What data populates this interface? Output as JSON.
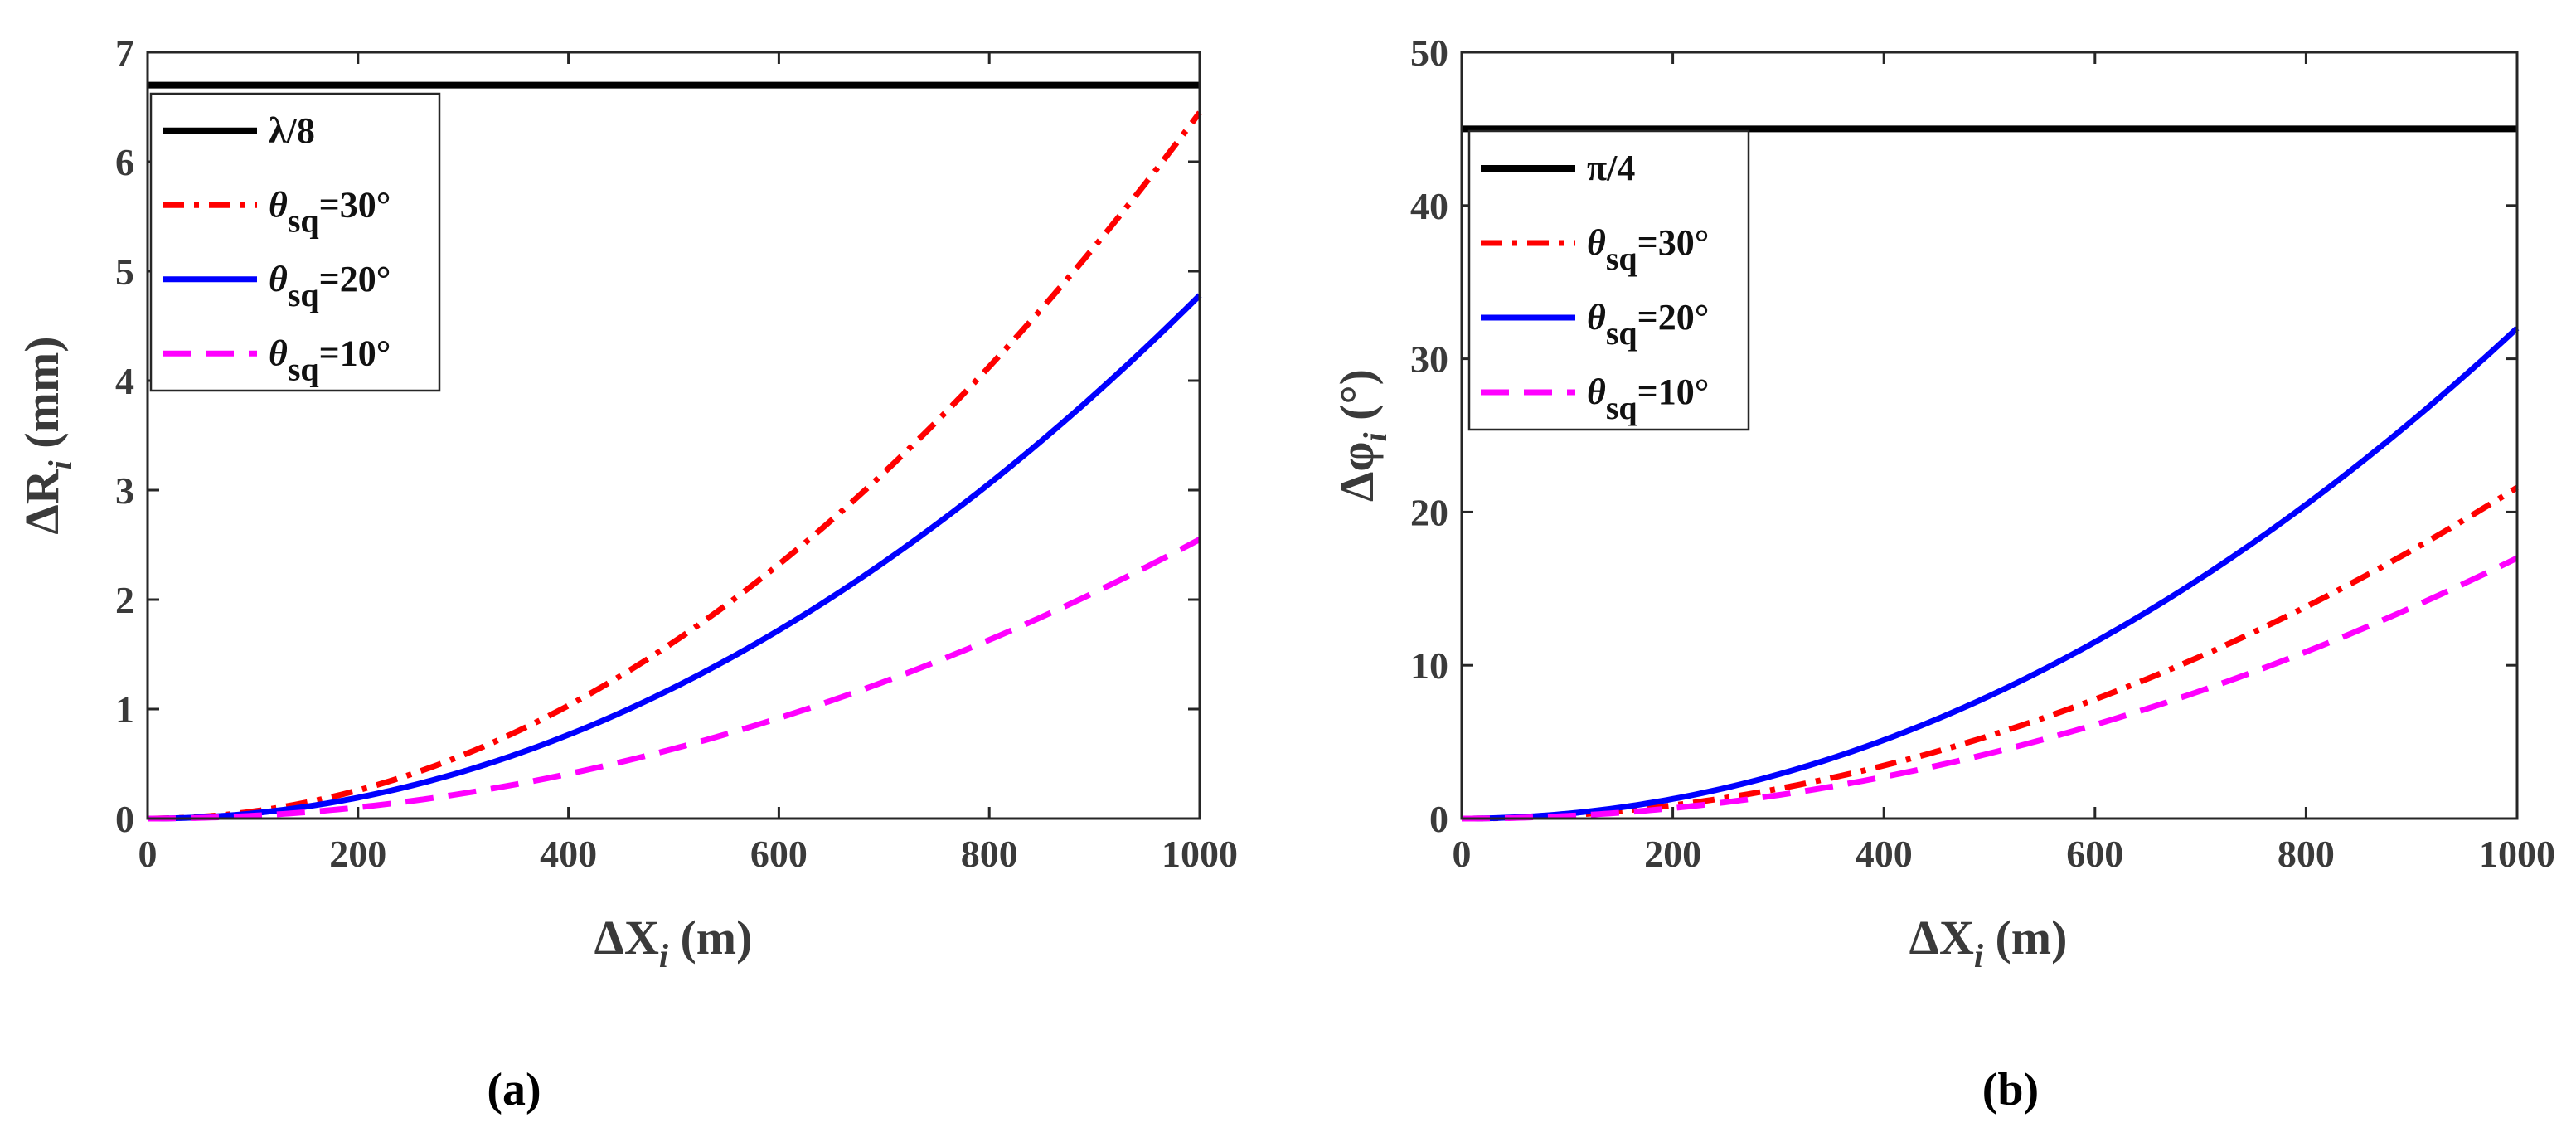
{
  "charts": [
    {
      "type": "line",
      "caption": "(a)",
      "xlabel": "ΔX",
      "xlabel_sub": "i",
      "xlabel_unit": " (m)",
      "ylabel": "ΔR",
      "ylabel_sub": "i",
      "ylabel_unit": " (mm)",
      "xlim": [
        0,
        1000
      ],
      "ylim": [
        0,
        7
      ],
      "xticks": [
        0,
        200,
        400,
        600,
        800,
        1000
      ],
      "yticks": [
        0,
        1,
        2,
        3,
        4,
        5,
        6,
        7
      ],
      "legend_position": "top-left",
      "series": [
        {
          "name": "λ/8",
          "label_main": "λ/8",
          "label_sub": "",
          "label_tail": "",
          "color": "#000000",
          "style": "solid",
          "kind": "constant",
          "value": 6.7
        },
        {
          "name": "θsq=30°",
          "label_main": "θ",
          "label_sub": "sq",
          "label_tail": "=30°",
          "color": "#ff0000",
          "style": "dashdot",
          "kind": "quadratic",
          "end_value": 6.45
        },
        {
          "name": "θsq=20°",
          "label_main": "θ",
          "label_sub": "sq",
          "label_tail": "=20°",
          "color": "#0000ff",
          "style": "solid",
          "kind": "quadratic",
          "end_value": 4.78
        },
        {
          "name": "θsq=10°",
          "label_main": "θ",
          "label_sub": "sq",
          "label_tail": "=10°",
          "color": "#ff00ff",
          "style": "dashed",
          "kind": "quadratic",
          "end_value": 2.55
        }
      ]
    },
    {
      "type": "line",
      "caption": "(b)",
      "xlabel": "ΔX",
      "xlabel_sub": "i",
      "xlabel_unit": " (m)",
      "ylabel": "Δφ",
      "ylabel_sub": "i",
      "ylabel_unit": " (°)",
      "xlim": [
        0,
        1000
      ],
      "ylim": [
        0,
        50
      ],
      "xticks": [
        0,
        200,
        400,
        600,
        800,
        1000
      ],
      "yticks": [
        0,
        10,
        20,
        30,
        40,
        50
      ],
      "legend_position": "top-left",
      "series": [
        {
          "name": "π/4",
          "label_main": "π/4",
          "label_sub": "",
          "label_tail": "",
          "color": "#000000",
          "style": "solid",
          "kind": "constant",
          "value": 45
        },
        {
          "name": "θsq=30°",
          "label_main": "θ",
          "label_sub": "sq",
          "label_tail": "=30°",
          "color": "#ff0000",
          "style": "dashdot",
          "kind": "quadratic",
          "end_value": 21.6
        },
        {
          "name": "θsq=20°",
          "label_main": "θ",
          "label_sub": "sq",
          "label_tail": "=20°",
          "color": "#0000ff",
          "style": "solid",
          "kind": "quadratic",
          "end_value": 32.0
        },
        {
          "name": "θsq=10°",
          "label_main": "θ",
          "label_sub": "sq",
          "label_tail": "=10°",
          "color": "#ff00ff",
          "style": "dashed",
          "kind": "quadratic",
          "end_value": 17.0
        }
      ]
    }
  ]
}
